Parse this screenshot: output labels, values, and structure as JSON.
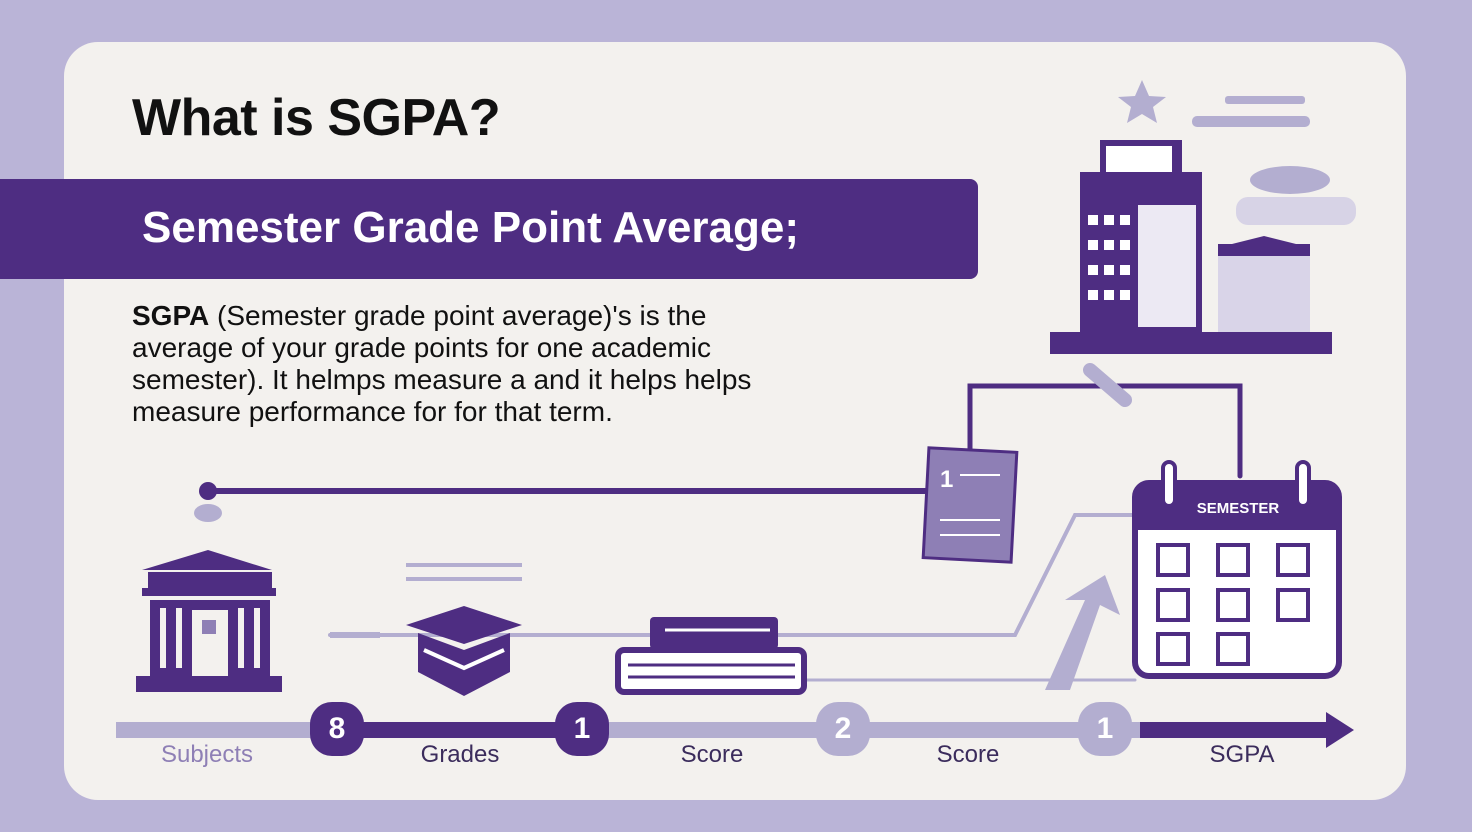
{
  "title": "What is SGPA?",
  "banner": "Semester Grade Point Average;",
  "description": {
    "bold": "SGPA",
    "text": " (Semester grade point average)'s is the average of your grade points for one academic semester). It helmps measure a and it helps helps measure performance for for that term."
  },
  "calendar_label": "SEMESTER",
  "document_number": "1",
  "timeline": {
    "nodes": [
      {
        "value": "8",
        "color": "#4e2d82"
      },
      {
        "value": "1",
        "color": "#4e2d82"
      },
      {
        "value": "2",
        "color": "#b3aed0"
      },
      {
        "value": "1",
        "color": "#b3aed0"
      }
    ],
    "labels": [
      "Subjects",
      "Grades",
      "Score",
      "Score",
      "SGPA"
    ]
  },
  "colors": {
    "primary": "#4e2d82",
    "light": "#b3aed0",
    "background": "#bab4d7",
    "card": "#f3f1ee"
  }
}
